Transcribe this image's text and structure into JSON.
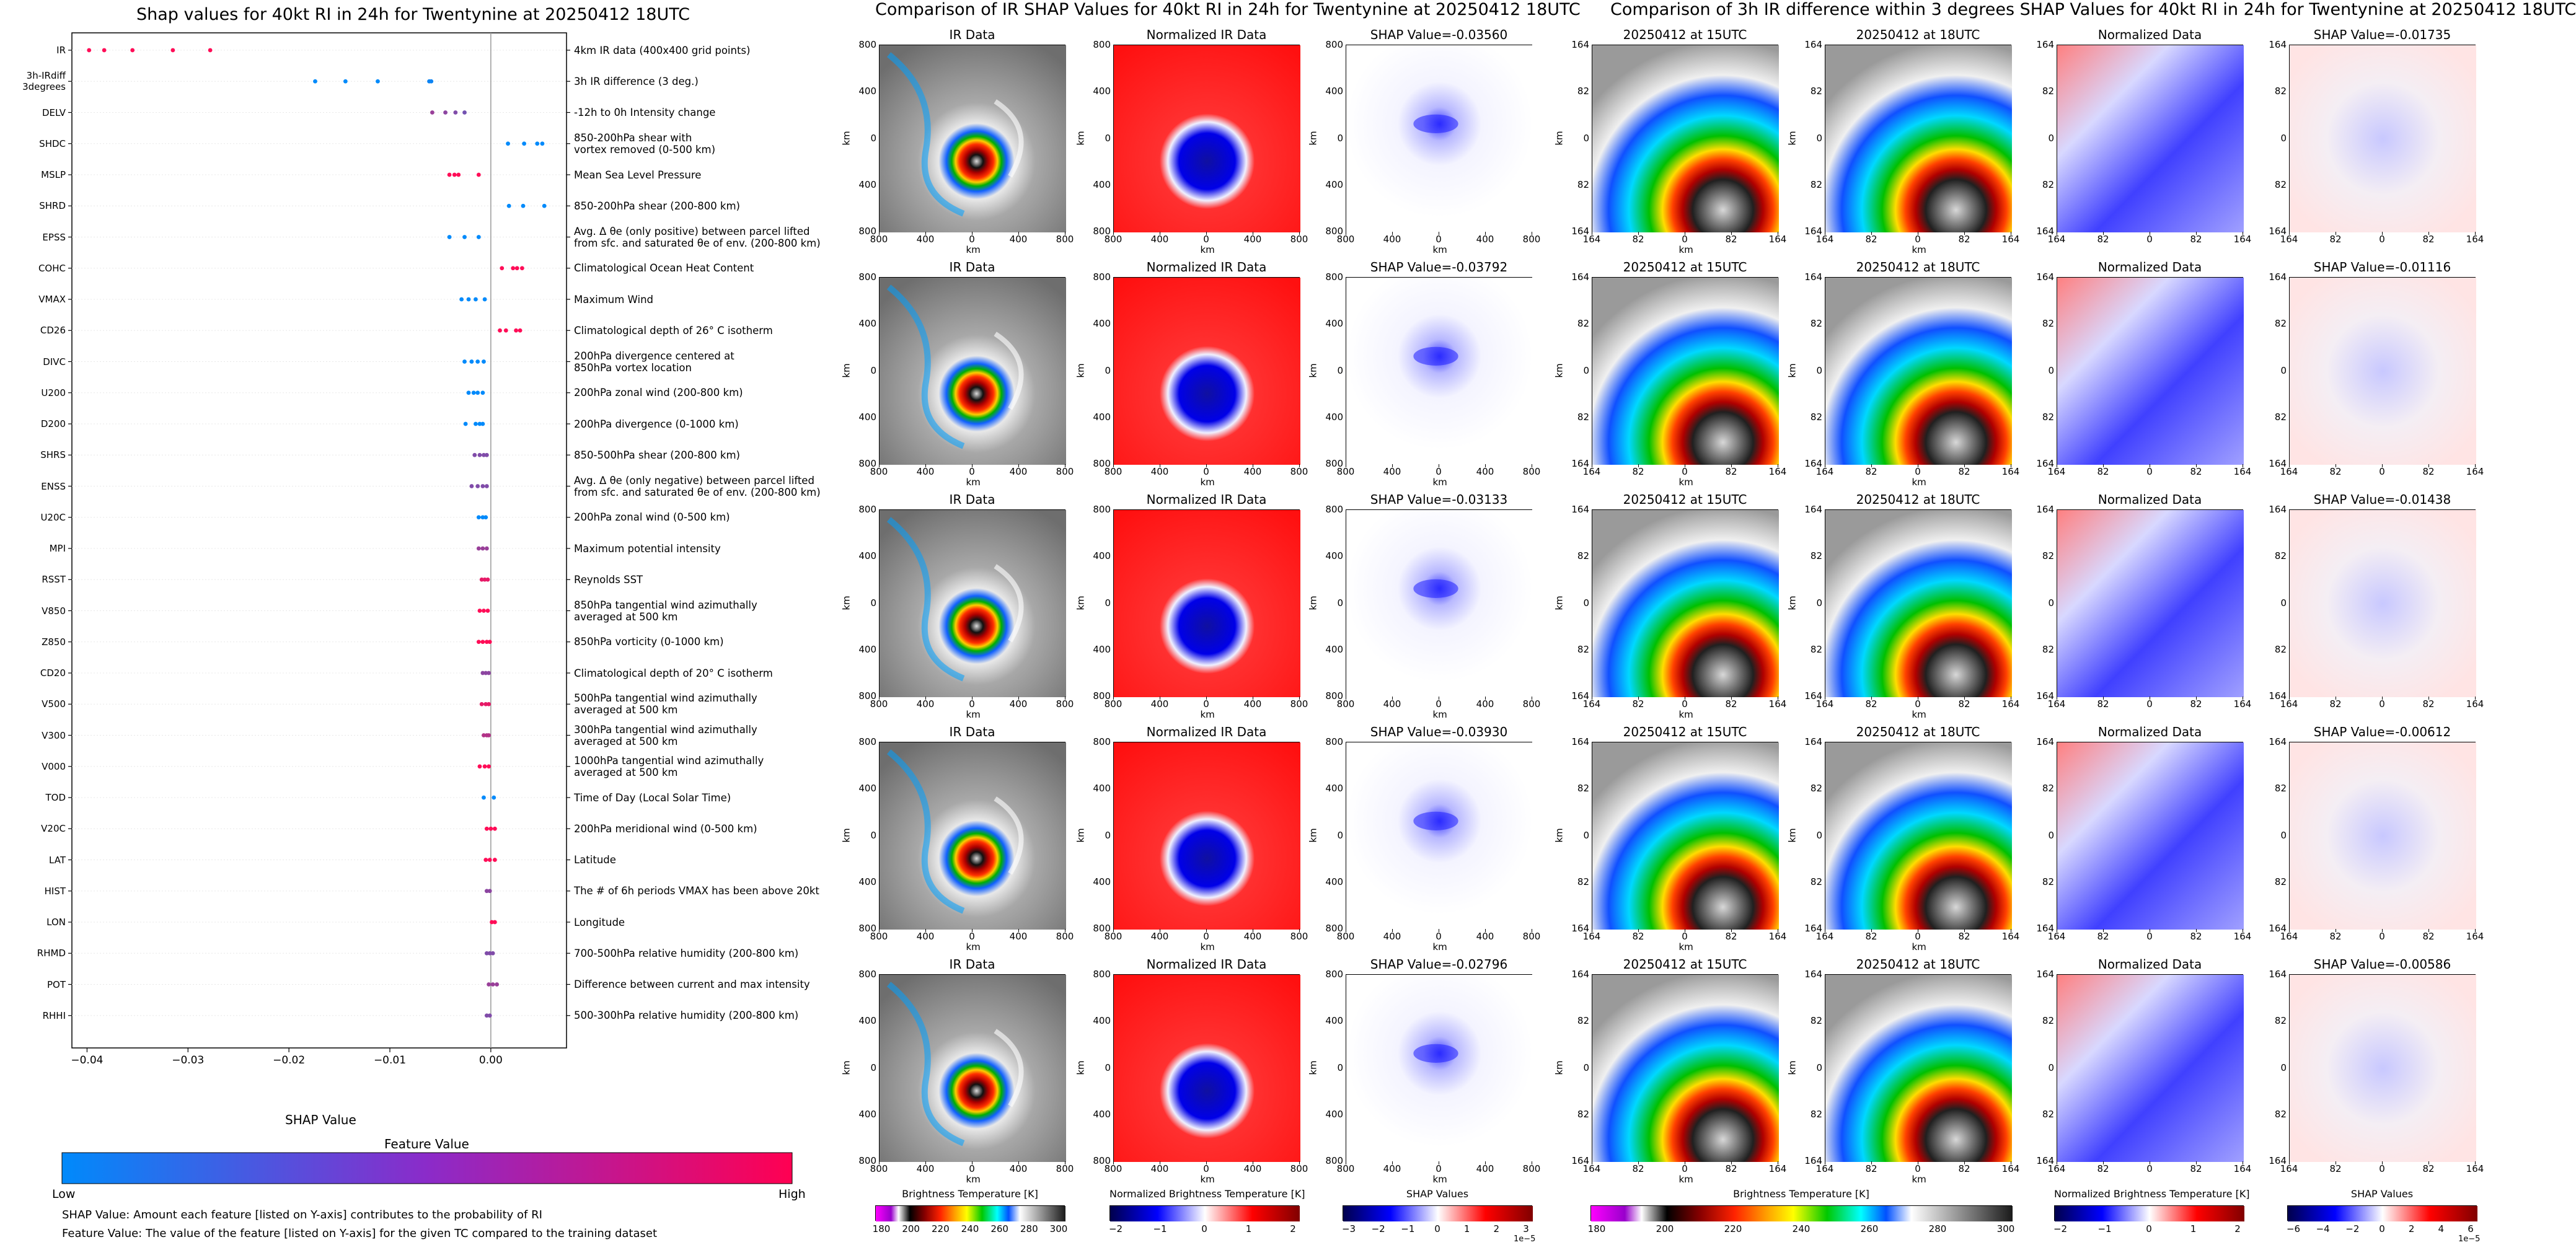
{
  "left": {
    "title": "Shap values for 40kt RI in 24h for Twentynine at 20250412 18UTC",
    "xlabel": "SHAP Value",
    "colorbar_title": "Feature Value",
    "colorbar_low": "Low",
    "colorbar_high": "High",
    "footnote1": "SHAP Value: Amount each feature [listed on Y-axis] contributes to the probability of RI",
    "footnote2": "Feature Value: The value of the feature [listed on Y-axis] for the given TC compared to the training dataset",
    "colors": {
      "low": "#1e88e5",
      "high": "#ff0d57"
    }
  },
  "ir_section": {
    "title": "Comparison of IR SHAP Values for 40kt RI in 24h for Twentynine at 20250412 18UTC",
    "col_titles": [
      "IR Data",
      "Normalized IR Data"
    ],
    "shap_titles": [
      "SHAP Value=-0.03560",
      "SHAP Value=-0.03792",
      "SHAP Value=-0.03133",
      "SHAP Value=-0.03930",
      "SHAP Value=-0.02796"
    ],
    "axis_label": "km",
    "xticks": [
      "800",
      "400",
      "0",
      "400",
      "800"
    ],
    "yticks": [
      "800",
      "400",
      "0",
      "400",
      "800"
    ],
    "cb1_label": "Brightness Temperature [K]",
    "cb1_ticks": [
      "180",
      "200",
      "220",
      "240",
      "260",
      "280",
      "300"
    ],
    "cb2_label": "Normalized Brightness Temperature [K]",
    "cb2_ticks": [
      "−2",
      "−1",
      "0",
      "1",
      "2"
    ],
    "cb3_label": "SHAP Values",
    "cb3_ticks": [
      "−3",
      "−2",
      "−1",
      "0",
      "1",
      "2",
      "3"
    ],
    "cb3_exp": "1e−5"
  },
  "diff_section": {
    "title": "Comparison of 3h IR difference within 3 degrees SHAP Values for 40kt RI in 24h for Twentynine at 20250412 18UTC",
    "col_titles": [
      "20250412 at 15UTC",
      "20250412 at 18UTC",
      "Normalized Data"
    ],
    "shap_titles": [
      "SHAP Value=-0.01735",
      "SHAP Value=-0.01116",
      "SHAP Value=-0.01438",
      "SHAP Value=-0.00612",
      "SHAP Value=-0.00586"
    ],
    "axis_label": "km",
    "xticks": [
      "164",
      "82",
      "0",
      "82",
      "164"
    ],
    "yticks": [
      "164",
      "82",
      "0",
      "82",
      "164"
    ],
    "cb1_label": "Brightness Temperature [K]",
    "cb1_ticks": [
      "180",
      "200",
      "220",
      "240",
      "260",
      "280",
      "300"
    ],
    "cb2_label": "Normalized Brightness Temperature [K]",
    "cb2_ticks": [
      "−2",
      "−1",
      "0",
      "1",
      "2"
    ],
    "cb3_label": "SHAP Values",
    "cb3_ticks": [
      "−6",
      "−4",
      "−2",
      "0",
      "2",
      "4",
      "6"
    ],
    "cb3_exp": "1e−5"
  },
  "chart_data": {
    "type": "scatter",
    "title": "Shap values for 40kt RI in 24h for Twentynine at 20250412 18UTC",
    "xlabel": "SHAP Value",
    "ylabel": "",
    "xlim": [
      -0.0415,
      0.0075
    ],
    "xticks": [
      -0.04,
      -0.03,
      -0.02,
      -0.01,
      0.0
    ],
    "xtick_labels": [
      "−0.04",
      "−0.03",
      "−0.02",
      "−0.01",
      "0.00"
    ],
    "features": [
      {
        "name": "IR",
        "desc": "4km IR data (400x400 grid points)",
        "points": [
          [
            -0.0398,
            1
          ],
          [
            -0.0383,
            1
          ],
          [
            -0.0355,
            1
          ],
          [
            -0.0315,
            1
          ],
          [
            -0.0278,
            1
          ]
        ]
      },
      {
        "name": "3h-IRdiff\n3degrees",
        "desc": "3h IR difference (3 deg.)",
        "points": [
          [
            -0.0174,
            0
          ],
          [
            -0.0144,
            0
          ],
          [
            -0.0112,
            0
          ],
          [
            -0.0061,
            0.05
          ],
          [
            -0.0059,
            0.05
          ]
        ]
      },
      {
        "name": "DELV",
        "desc": "-12h to 0h Intensity change",
        "points": [
          [
            -0.0058,
            0.6
          ],
          [
            -0.0045,
            0.55
          ],
          [
            -0.0035,
            0.5
          ],
          [
            -0.0026,
            0.45
          ]
        ]
      },
      {
        "name": "SHDC",
        "desc": "850-200hPa shear with\nvortex removed (0-500 km)",
        "points": [
          [
            0.0017,
            0
          ],
          [
            0.0033,
            0
          ],
          [
            0.0046,
            0
          ],
          [
            0.0051,
            0
          ]
        ]
      },
      {
        "name": "MSLP",
        "desc": "Mean Sea Level Pressure",
        "points": [
          [
            -0.0041,
            1
          ],
          [
            -0.0036,
            1
          ],
          [
            -0.0032,
            1
          ],
          [
            -0.0012,
            1
          ]
        ]
      },
      {
        "name": "SHRD",
        "desc": "850-200hPa shear (200-800 km)",
        "points": [
          [
            0.0018,
            0
          ],
          [
            0.0032,
            0
          ],
          [
            0.0053,
            0
          ]
        ]
      },
      {
        "name": "EPSS",
        "desc": "Avg. Δ θe (only positive) between parcel lifted\nfrom sfc. and saturated θe of env. (200-800 km)",
        "points": [
          [
            -0.0041,
            0
          ],
          [
            -0.0026,
            0
          ],
          [
            -0.0012,
            0
          ]
        ]
      },
      {
        "name": "COHC",
        "desc": "Climatological Ocean Heat Content",
        "points": [
          [
            0.0011,
            1
          ],
          [
            0.0022,
            1
          ],
          [
            0.0026,
            1
          ],
          [
            0.0031,
            1
          ]
        ]
      },
      {
        "name": "VMAX",
        "desc": "Maximum Wind",
        "points": [
          [
            -0.0029,
            0
          ],
          [
            -0.0022,
            0
          ],
          [
            -0.0015,
            0
          ],
          [
            -0.0006,
            0
          ]
        ]
      },
      {
        "name": "CD26",
        "desc": "Climatological depth of 26° C isotherm",
        "points": [
          [
            0.0009,
            1
          ],
          [
            0.0015,
            1
          ],
          [
            0.0025,
            1
          ],
          [
            0.0029,
            1
          ]
        ]
      },
      {
        "name": "DIVC",
        "desc": "200hPa divergence centered at\n850hPa vortex location",
        "points": [
          [
            -0.0026,
            0
          ],
          [
            -0.0019,
            0
          ],
          [
            -0.0013,
            0
          ],
          [
            -0.0007,
            0
          ]
        ]
      },
      {
        "name": "U200",
        "desc": "200hPa zonal wind (200-800 km)",
        "points": [
          [
            -0.0022,
            0
          ],
          [
            -0.0017,
            0
          ],
          [
            -0.0013,
            0
          ],
          [
            -0.0008,
            0
          ]
        ]
      },
      {
        "name": "D200",
        "desc": "200hPa divergence (0-1000 km)",
        "points": [
          [
            -0.0025,
            0
          ],
          [
            -0.0015,
            0
          ],
          [
            -0.0011,
            0
          ],
          [
            -0.0008,
            0
          ]
        ]
      },
      {
        "name": "SHRS",
        "desc": "850-500hPa shear (200-800 km)",
        "points": [
          [
            -0.0016,
            0.5
          ],
          [
            -0.0011,
            0.5
          ],
          [
            -0.0007,
            0.5
          ],
          [
            -0.0004,
            0.5
          ]
        ]
      },
      {
        "name": "ENSS",
        "desc": "Avg. Δ θe (only negative) between parcel lifted\nfrom sfc. and saturated θe of env. (200-800 km)",
        "points": [
          [
            -0.0019,
            0.5
          ],
          [
            -0.0013,
            0.5
          ],
          [
            -0.0008,
            0.5
          ],
          [
            -0.0004,
            0.5
          ]
        ]
      },
      {
        "name": "U20C",
        "desc": "200hPa zonal wind (0-500 km)",
        "points": [
          [
            -0.0012,
            0
          ],
          [
            -0.0008,
            0
          ],
          [
            -0.0005,
            0
          ]
        ]
      },
      {
        "name": "MPI",
        "desc": "Maximum potential intensity",
        "points": [
          [
            -0.0012,
            0.6
          ],
          [
            -0.0008,
            0.6
          ],
          [
            -0.0004,
            0.6
          ]
        ]
      },
      {
        "name": "RSST",
        "desc": "Reynolds SST",
        "points": [
          [
            -0.0009,
            0.9
          ],
          [
            -0.0006,
            0.9
          ],
          [
            -0.0003,
            0.9
          ]
        ]
      },
      {
        "name": "V850",
        "desc": "850hPa tangential wind azimuthally\naveraged at 500 km",
        "points": [
          [
            -0.0011,
            1
          ],
          [
            -0.0007,
            1
          ],
          [
            -0.0003,
            1
          ]
        ]
      },
      {
        "name": "Z850",
        "desc": "850hPa vorticity (0-1000 km)",
        "points": [
          [
            -0.0012,
            1
          ],
          [
            -0.0008,
            1
          ],
          [
            -0.0004,
            1
          ],
          [
            -0.0001,
            1
          ]
        ]
      },
      {
        "name": "CD20",
        "desc": "Climatological depth of 20° C isotherm",
        "points": [
          [
            -0.0008,
            0.55
          ],
          [
            -0.0005,
            0.55
          ],
          [
            -0.0002,
            0.55
          ]
        ]
      },
      {
        "name": "V500",
        "desc": "500hPa tangential wind azimuthally\naveraged at 500 km",
        "points": [
          [
            -0.0009,
            0.9
          ],
          [
            -0.0005,
            0.9
          ],
          [
            -0.0002,
            0.9
          ]
        ]
      },
      {
        "name": "V300",
        "desc": "300hPa tangential wind azimuthally\naveraged at 500 km",
        "points": [
          [
            -0.0007,
            0.7
          ],
          [
            -0.0004,
            0.7
          ],
          [
            -0.0002,
            0.7
          ]
        ]
      },
      {
        "name": "V000",
        "desc": "1000hPa tangential wind azimuthally\naveraged at 500 km",
        "points": [
          [
            -0.0011,
            1
          ],
          [
            -0.0006,
            1
          ],
          [
            -0.0002,
            1
          ]
        ]
      },
      {
        "name": "TOD",
        "desc": "Time of Day (Local Solar Time)",
        "points": [
          [
            -0.0007,
            0
          ],
          [
            0.0003,
            0
          ]
        ]
      },
      {
        "name": "V20C",
        "desc": "200hPa meridional wind (0-500 km)",
        "points": [
          [
            -0.0004,
            1
          ],
          [
            0.0,
            1
          ],
          [
            0.0004,
            1
          ]
        ]
      },
      {
        "name": "LAT",
        "desc": "Latitude",
        "points": [
          [
            -0.0005,
            1
          ],
          [
            -0.0001,
            1
          ],
          [
            0.0004,
            1
          ]
        ]
      },
      {
        "name": "HIST",
        "desc": "The # of 6h periods VMAX has been above 20kt",
        "points": [
          [
            -0.0004,
            0.55
          ],
          [
            -0.0001,
            0.55
          ]
        ]
      },
      {
        "name": "LON",
        "desc": "Longitude",
        "points": [
          [
            0.0001,
            1
          ],
          [
            0.0004,
            1
          ]
        ]
      },
      {
        "name": "RHMD",
        "desc": "700-500hPa relative humidity (200-800 km)",
        "points": [
          [
            -0.0004,
            0.5
          ],
          [
            -0.0001,
            0.5
          ],
          [
            0.0002,
            0.5
          ]
        ]
      },
      {
        "name": "POT",
        "desc": "Difference between current and max intensity",
        "points": [
          [
            -0.0002,
            0.6
          ],
          [
            0.0002,
            0.6
          ],
          [
            0.0006,
            0.6
          ]
        ]
      },
      {
        "name": "RHHI",
        "desc": "500-300hPa relative humidity (200-800 km)",
        "points": [
          [
            -0.0004,
            0.5
          ],
          [
            -0.0001,
            0.5
          ]
        ]
      }
    ]
  }
}
